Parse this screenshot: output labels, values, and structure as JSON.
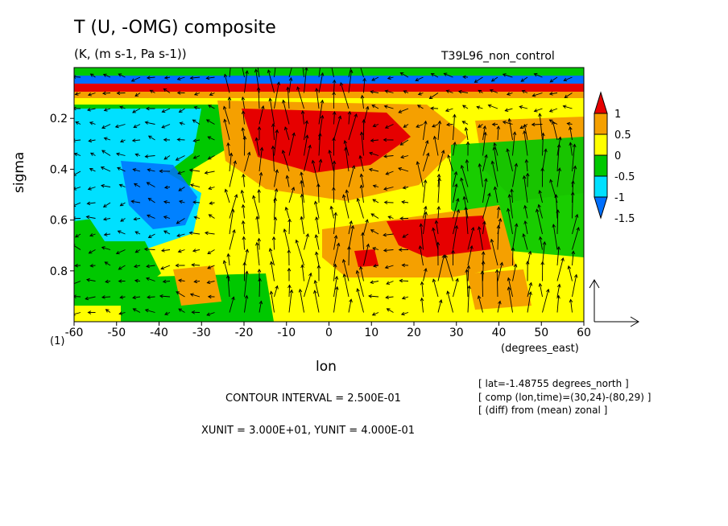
{
  "chart_data": {
    "type": "heatmap",
    "title": "T (U, -OMG) composite",
    "units": "(K, (m s-1, Pa s-1))",
    "run_name": "T39L96_non_control",
    "xlabel": "lon",
    "xunits": "(degrees_east)",
    "ylabel": "sigma",
    "xlim": [
      -60,
      60
    ],
    "ylim": [
      1.0,
      0.0
    ],
    "x_ticks": [
      -60,
      -50,
      -40,
      -30,
      -20,
      -10,
      0,
      10,
      20,
      30,
      40,
      50,
      60
    ],
    "x_tick_labels": [
      "-60",
      "-50",
      "-40",
      "-30",
      "-20",
      "-10",
      "0",
      "10",
      "20",
      "30",
      "40",
      "50",
      "60"
    ],
    "y_ticks": [
      0.2,
      0.4,
      0.6,
      0.8
    ],
    "y_tick_labels": [
      "0.2",
      "0.4",
      "0.6",
      "0.8"
    ],
    "corner_label": "(1)",
    "colorbar": {
      "labels": [
        "1",
        "0.5",
        "0",
        "-0.5",
        "-1",
        "-1.5"
      ],
      "levels": [
        1.0,
        0.5,
        0.0,
        -0.5,
        -1.0,
        -1.5
      ],
      "colors": [
        "#e60000",
        "#f5a000",
        "#ffff00",
        "#00c800",
        "#00e0ff",
        "#0070ff"
      ]
    },
    "contour_interval_text": "CONTOUR INTERVAL = 2.500E-01",
    "unit_vector_text": "XUNIT = 3.000E+01, YUNIT = 4.000E-01",
    "info_lines": [
      "[ lat=-1.48755 degrees_north ]",
      "[ comp (lon,time)=(30,24)-(80,29) ]",
      "[ (diff) from (mean) zonal ]"
    ]
  }
}
